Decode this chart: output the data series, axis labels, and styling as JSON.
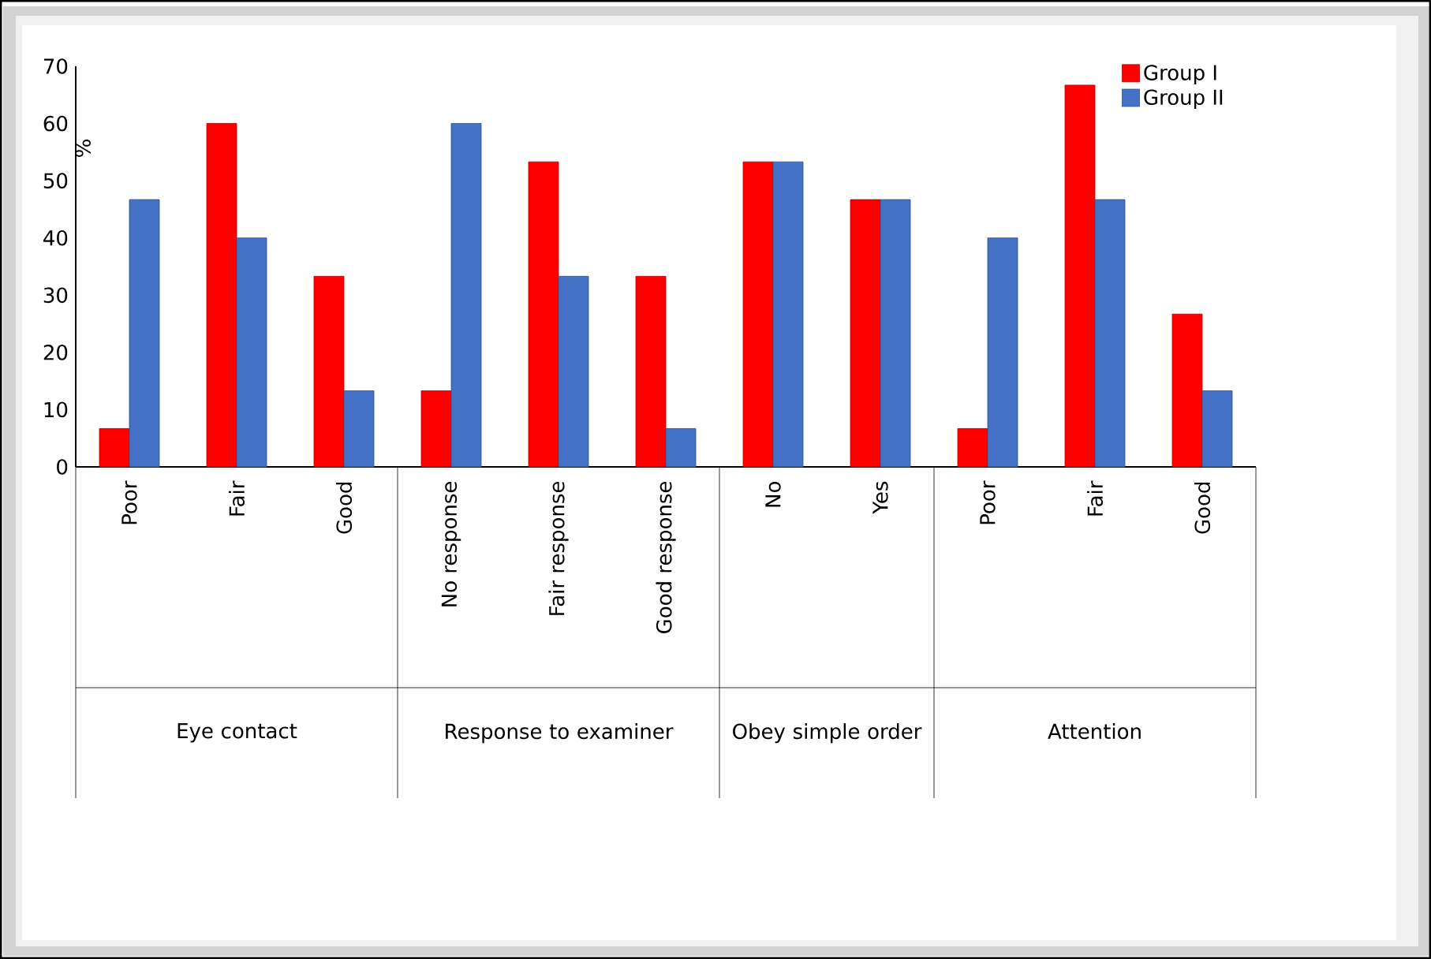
{
  "chart_data": {
    "type": "bar",
    "ylabel": "%",
    "categories": [
      "Poor",
      "Fair",
      "Good",
      "No response",
      "Fair response",
      "Good response",
      "No",
      "Yes",
      "Poor",
      "Fair",
      "Good"
    ],
    "series": [
      {
        "name": "Group I",
        "color": "#ff0000",
        "values": [
          6.7,
          60,
          33.3,
          13.3,
          53.3,
          33.3,
          53.3,
          46.7,
          6.7,
          66.7,
          26.7
        ]
      },
      {
        "name": "Group II",
        "color": "#4472c4",
        "values": [
          46.7,
          40,
          13.3,
          60,
          33.3,
          6.7,
          53.3,
          46.7,
          40,
          46.7,
          13.3
        ]
      }
    ],
    "annotations": [
      "Eye contact",
      "Response to examiner",
      "Obey simple order",
      "Attention"
    ],
    "ylim": [
      0,
      70
    ],
    "yticks": [
      0,
      10,
      20,
      30,
      40,
      50,
      60,
      70
    ],
    "legend": "top right"
  }
}
